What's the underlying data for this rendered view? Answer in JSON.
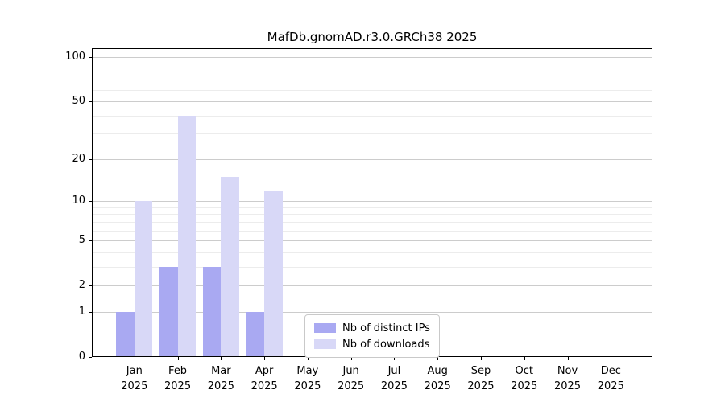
{
  "chart_data": {
    "type": "bar",
    "title": "MafDb.gnomAD.r3.0.GRCh38 2025",
    "year_label": "2025",
    "categories": [
      "Jan",
      "Feb",
      "Mar",
      "Apr",
      "May",
      "Jun",
      "Jul",
      "Aug",
      "Sep",
      "Oct",
      "Nov",
      "Dec"
    ],
    "series": [
      {
        "key": "distinct-ips",
        "name": "Nb of distinct IPs",
        "color": "#a9a9f2",
        "values": [
          1,
          3,
          3,
          1,
          0,
          0,
          0,
          0,
          0,
          0,
          0,
          0
        ]
      },
      {
        "key": "downloads",
        "name": "Nb of downloads",
        "color": "#d8d8f7",
        "values": [
          10,
          40,
          15,
          12,
          0,
          0,
          0,
          0,
          0,
          0,
          0,
          0
        ]
      }
    ],
    "yscale": "log1p",
    "y_ticks": [
      0,
      1,
      2,
      5,
      10,
      20,
      50,
      100
    ],
    "y_minor_gridlines": [
      3,
      4,
      6,
      7,
      8,
      9,
      30,
      40,
      60,
      70,
      80,
      90
    ],
    "ylim": [
      0,
      115
    ],
    "xlabel": "",
    "ylabel": "",
    "grid": "horizontal",
    "legend_position": "lower center"
  }
}
